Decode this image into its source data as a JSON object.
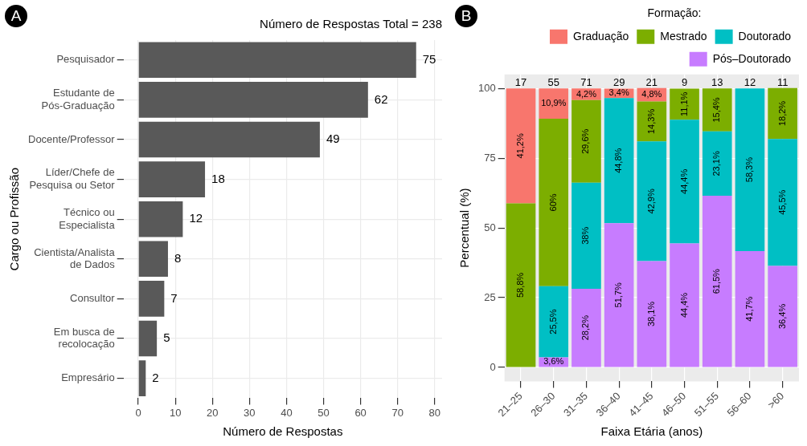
{
  "chart_data": [
    {
      "type": "bar",
      "orientation": "horizontal",
      "title": "Número de Respostas Total = 238",
      "xlabel": "Número de Respostas",
      "ylabel": "Cargo ou Profissão",
      "annotations": [
        "A"
      ],
      "categories": [
        "Pesquisador",
        "Estudante de Pós-Graduação",
        "Docente/Professor",
        "Líder/Chefe de Pesquisa ou Setor",
        "Técnico ou Especialista",
        "Cientista/Analista de Dados",
        "Consultor",
        "Em busca de recolocação",
        "Empresário"
      ],
      "values": [
        75,
        62,
        49,
        18,
        12,
        8,
        7,
        5,
        2
      ],
      "color": "#595959",
      "data_labels": true,
      "xlim": [
        -4,
        82
      ],
      "xticks": [
        0,
        10,
        20,
        30,
        40,
        50,
        60,
        70,
        80
      ],
      "grid": true
    },
    {
      "type": "bar",
      "stacked": true,
      "xlabel": "Faixa Etária (anos)",
      "ylabel": "Percentual (%)",
      "legend_title": "Formação:",
      "legend": "top",
      "annotations": [
        "B",
        "17",
        "55",
        "71",
        "29",
        "21",
        "9",
        "13",
        "12",
        "11"
      ],
      "categories": [
        "21–25",
        "26–30",
        "31–35",
        "36–40",
        "41–45",
        "46–50",
        "51–55",
        "56–60",
        ">60"
      ],
      "series": [
        {
          "name": "Pós–Doutorado",
          "color": "#c77cff",
          "values": [
            null,
            3.6,
            28.2,
            51.7,
            38.1,
            44.4,
            61.5,
            41.7,
            36.4
          ],
          "value_labels": [
            null,
            "3,6%",
            "28,2%",
            "51,7%",
            "38,1%",
            "44,4%",
            "61,5%",
            "41,7%",
            "36,4%"
          ]
        },
        {
          "name": "Doutorado",
          "color": "#00bfc4",
          "values": [
            null,
            25.5,
            38,
            44.8,
            42.9,
            44.4,
            23.1,
            58.3,
            45.5
          ],
          "value_labels": [
            null,
            "25,5%",
            "38%",
            "44,8%",
            "42,9%",
            "44,4%",
            "23,1%",
            "58,3%",
            "45,5%"
          ]
        },
        {
          "name": "Mestrado",
          "color": "#7cae00",
          "values": [
            58.8,
            60,
            29.6,
            null,
            14.3,
            11.1,
            15.4,
            null,
            18.2
          ],
          "value_labels": [
            "58,8%",
            "60%",
            "29,6%",
            null,
            "14,3%",
            "11,1%",
            "15,4%",
            null,
            "18,2%"
          ]
        },
        {
          "name": "Graduação",
          "color": "#f8766d",
          "values": [
            41.2,
            10.9,
            4.2,
            3.4,
            4.8,
            null,
            null,
            null,
            null
          ],
          "value_labels": [
            "41,2%",
            "10,9%",
            "4,2%",
            "3,4%",
            "4,8%",
            null,
            null,
            null,
            null
          ]
        }
      ],
      "ylim": [
        -5,
        105
      ],
      "yticks": [
        0,
        25,
        50,
        75,
        100
      ],
      "grid": true
    }
  ]
}
